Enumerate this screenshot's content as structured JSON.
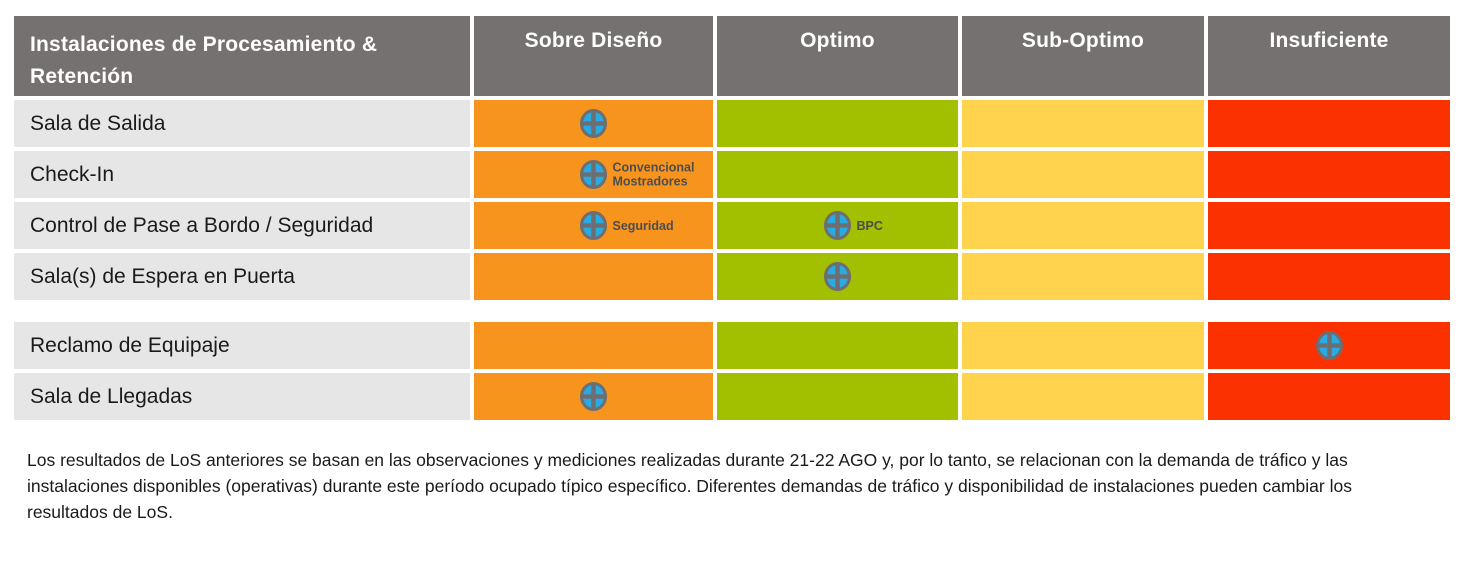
{
  "chart_data": {
    "type": "table",
    "header": {
      "facility_column": "Instalaciones de Procesamiento & Retención"
    },
    "levels": [
      {
        "key": "sobre-diseno",
        "label": "Sobre Diseño",
        "color": "#F7941E"
      },
      {
        "key": "optimo",
        "label": "Optimo",
        "color": "#A2BF00"
      },
      {
        "key": "sub-optimo",
        "label": "Sub-Optimo",
        "color": "#FFD34D"
      },
      {
        "key": "insuficiente",
        "label": "Insuficiente",
        "color": "#FB3200"
      }
    ],
    "rows": [
      {
        "facility": "Sala de Salida",
        "markers": [
          {
            "level": "sobre-diseno",
            "label": ""
          }
        ]
      },
      {
        "facility": "Check-In",
        "markers": [
          {
            "level": "sobre-diseno",
            "label": "Convencional Mostradores"
          }
        ]
      },
      {
        "facility": "Control de Pase a Bordo / Seguridad",
        "markers": [
          {
            "level": "sobre-diseno",
            "label": "Seguridad"
          },
          {
            "level": "optimo",
            "label": "BPC"
          }
        ]
      },
      {
        "facility": "Sala(s) de Espera en Puerta",
        "markers": [
          {
            "level": "optimo",
            "label": ""
          }
        ]
      },
      {
        "facility": "Reclamo de Equipaje",
        "section_break": true,
        "markers": [
          {
            "level": "insuficiente",
            "label": ""
          }
        ]
      },
      {
        "facility": "Sala de Llegadas",
        "markers": [
          {
            "level": "sobre-diseno",
            "label": ""
          }
        ]
      }
    ]
  },
  "marker_icon": {
    "name": "crosshair-circle-icon",
    "fill": "#29ABE2",
    "cross_color": "#6D6E71"
  },
  "colors": {
    "header_bg": "#767171",
    "facility_cell_bg": "#E7E6E6"
  },
  "footnote": "Los resultados de LoS anteriores se basan en las observaciones y mediciones realizadas durante 21-22 AGO y, por lo tanto, se relacionan con la demanda de tráfico y las instalaciones disponibles (operativas) durante este período ocupado típico específico. Diferentes demandas de tráfico y disponibilidad de instalaciones pueden cambiar los resultados de LoS."
}
